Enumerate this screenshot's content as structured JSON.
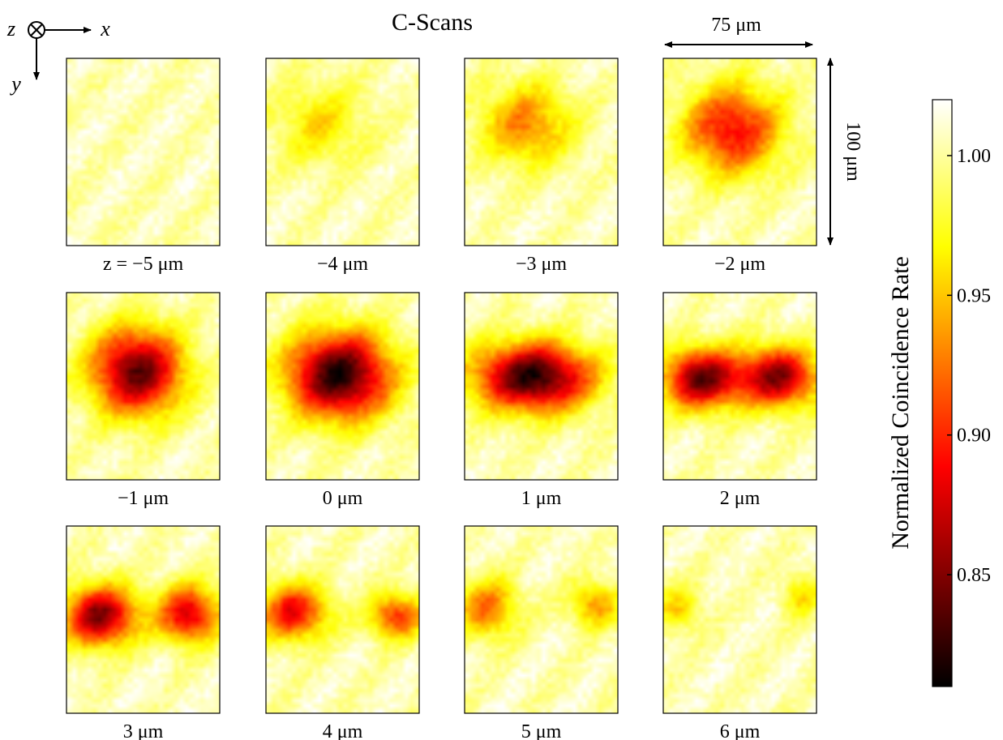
{
  "title": "C-Scans",
  "axes": {
    "x": "x",
    "y": "y",
    "z": "z"
  },
  "scale": {
    "width_label": "75 μm",
    "height_label": "100 μm"
  },
  "colorbar": {
    "label": "Normalized Coincidence Rate",
    "range": [
      0.81,
      1.02
    ],
    "ticks": [
      0.85,
      0.9,
      0.95,
      1.0
    ],
    "tick_labels": [
      "0.85",
      "0.90",
      "0.95",
      "1.00"
    ],
    "colormap": "hot"
  },
  "chart_data": {
    "type": "heatmap",
    "title": "C-Scans",
    "grid": "3x4 small multiples",
    "panels": [
      {
        "label": "z = −5 μm",
        "z_um": -5,
        "min_value": 0.97,
        "blobs": []
      },
      {
        "label": "−4 μm",
        "z_um": -4,
        "min_value": 0.955,
        "blobs": [
          {
            "cx": 0.35,
            "cy": 0.35,
            "rx": 0.3,
            "ry": 0.22,
            "depth": 0.045
          }
        ]
      },
      {
        "label": "−3 μm",
        "z_um": -3,
        "min_value": 0.93,
        "blobs": [
          {
            "cx": 0.4,
            "cy": 0.35,
            "rx": 0.3,
            "ry": 0.22,
            "depth": 0.075
          }
        ]
      },
      {
        "label": "−2 μm",
        "z_um": -2,
        "min_value": 0.89,
        "blobs": [
          {
            "cx": 0.45,
            "cy": 0.38,
            "rx": 0.32,
            "ry": 0.24,
            "depth": 0.115
          }
        ]
      },
      {
        "label": "−1 μm",
        "z_um": -1,
        "min_value": 0.84,
        "blobs": [
          {
            "cx": 0.46,
            "cy": 0.42,
            "rx": 0.3,
            "ry": 0.23,
            "depth": 0.165
          }
        ]
      },
      {
        "label": "0 μm",
        "z_um": 0,
        "min_value": 0.82,
        "blobs": [
          {
            "cx": 0.48,
            "cy": 0.44,
            "rx": 0.34,
            "ry": 0.23,
            "depth": 0.185
          }
        ]
      },
      {
        "label": "1 μm",
        "z_um": 1,
        "min_value": 0.82,
        "blobs": [
          {
            "cx": 0.45,
            "cy": 0.45,
            "rx": 0.38,
            "ry": 0.18,
            "depth": 0.185
          }
        ]
      },
      {
        "label": "2 μm",
        "z_um": 2,
        "min_value": 0.83,
        "blobs": [
          {
            "cx": 0.25,
            "cy": 0.46,
            "rx": 0.25,
            "ry": 0.16,
            "depth": 0.16
          },
          {
            "cx": 0.75,
            "cy": 0.45,
            "rx": 0.26,
            "ry": 0.16,
            "depth": 0.15
          }
        ]
      },
      {
        "label": "3 μm",
        "z_um": 3,
        "min_value": 0.84,
        "blobs": [
          {
            "cx": 0.22,
            "cy": 0.48,
            "rx": 0.24,
            "ry": 0.16,
            "depth": 0.155
          },
          {
            "cx": 0.8,
            "cy": 0.47,
            "rx": 0.2,
            "ry": 0.15,
            "depth": 0.13
          }
        ]
      },
      {
        "label": "4 μm",
        "z_um": 4,
        "min_value": 0.88,
        "blobs": [
          {
            "cx": 0.18,
            "cy": 0.46,
            "rx": 0.22,
            "ry": 0.15,
            "depth": 0.12
          },
          {
            "cx": 0.85,
            "cy": 0.48,
            "rx": 0.18,
            "ry": 0.12,
            "depth": 0.1
          }
        ]
      },
      {
        "label": "5 μm",
        "z_um": 5,
        "min_value": 0.92,
        "blobs": [
          {
            "cx": 0.15,
            "cy": 0.44,
            "rx": 0.2,
            "ry": 0.16,
            "depth": 0.08
          },
          {
            "cx": 0.85,
            "cy": 0.42,
            "rx": 0.16,
            "ry": 0.12,
            "depth": 0.07
          }
        ]
      },
      {
        "label": "6 μm",
        "z_um": 6,
        "min_value": 0.95,
        "blobs": [
          {
            "cx": 0.1,
            "cy": 0.44,
            "rx": 0.15,
            "ry": 0.12,
            "depth": 0.05
          },
          {
            "cx": 0.9,
            "cy": 0.37,
            "rx": 0.12,
            "ry": 0.12,
            "depth": 0.045
          }
        ]
      }
    ]
  }
}
